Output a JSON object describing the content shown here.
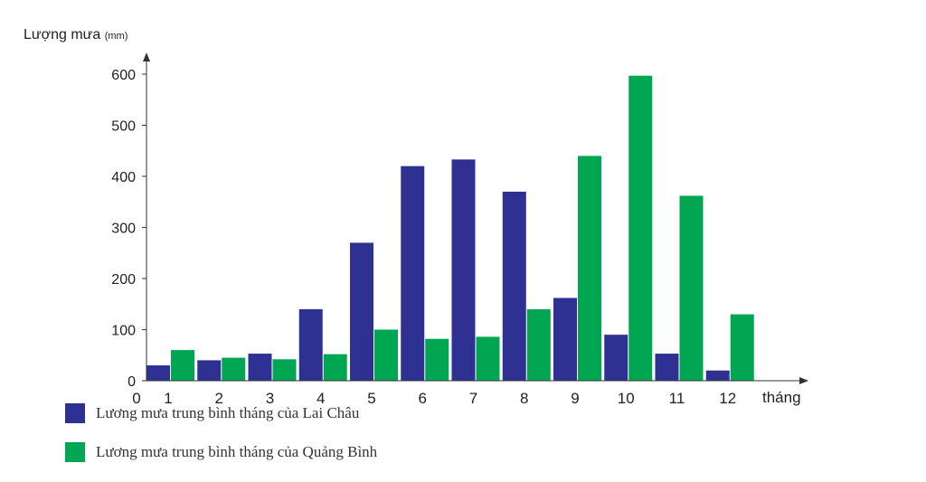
{
  "chart_data": {
    "type": "bar",
    "ylabel": "Lượng mưa",
    "ylabel_unit": "(mm)",
    "xlabel": "tháng",
    "x_origin_label": "0",
    "ylim": [
      0,
      600
    ],
    "yticks": [
      0,
      100,
      200,
      300,
      400,
      500,
      600
    ],
    "categories": [
      "1",
      "2",
      "3",
      "4",
      "5",
      "6",
      "7",
      "8",
      "9",
      "10",
      "11",
      "12"
    ],
    "series": [
      {
        "name": "Lương mưa trung bình tháng của Lai Châu",
        "color": "#2e3192",
        "values": [
          30,
          40,
          53,
          140,
          270,
          420,
          433,
          370,
          162,
          90,
          53,
          20
        ]
      },
      {
        "name": "Lương mưa trung bình tháng của Quảng Bình",
        "color": "#00a651",
        "values": [
          60,
          45,
          42,
          52,
          100,
          82,
          86,
          140,
          440,
          597,
          362,
          130
        ]
      }
    ]
  }
}
